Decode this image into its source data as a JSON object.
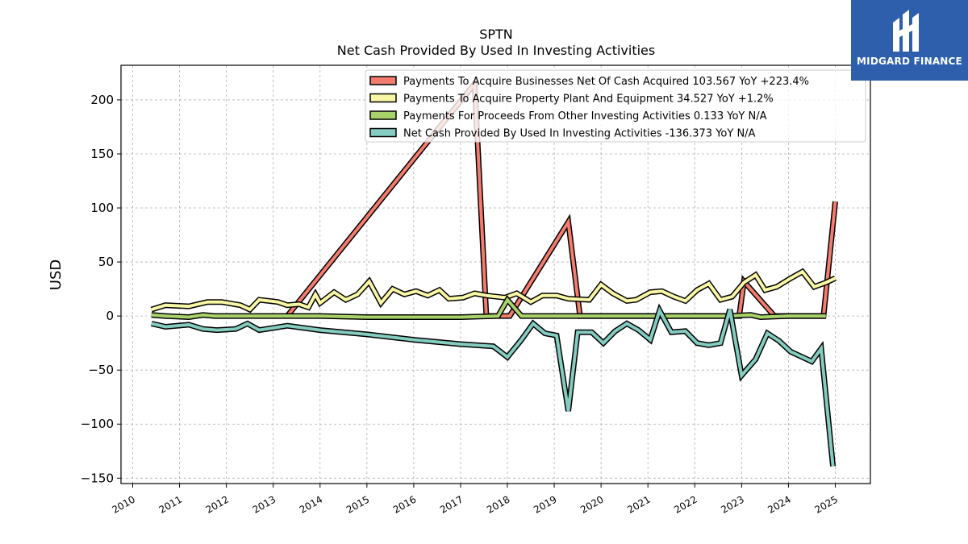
{
  "brand": {
    "name": "MIDGARD FINANCE",
    "bg_color": "#2d5fad"
  },
  "chart_data": {
    "type": "line",
    "title": "SPTN",
    "subtitle": "Net Cash Provided By Used In Investing Activities",
    "ylabel": "USD",
    "xlabel": "",
    "xlim": [
      2009.75,
      2025.75
    ],
    "ylim": [
      -155,
      232
    ],
    "yticks": [
      -150,
      -100,
      -50,
      0,
      50,
      100,
      150,
      200
    ],
    "xticks": [
      "2010",
      "2011",
      "2012",
      "2013",
      "2014",
      "2015",
      "2016",
      "2017",
      "2018",
      "2019",
      "2020",
      "2021",
      "2022",
      "2023",
      "2024",
      "2025"
    ],
    "grid": true,
    "legend_position": "top-right",
    "series": [
      {
        "name": "Payments To Acquire Businesses Net Of Cash Acquired",
        "legend_label": "Payments To Acquire Businesses Net Of Cash Acquired  103.567 YoY +223.4%",
        "color": "#f47c6e",
        "points": [
          [
            2013.3,
            0
          ],
          [
            2017.3,
            215
          ],
          [
            2017.55,
            0
          ],
          [
            2017.95,
            0
          ],
          [
            2018.05,
            0
          ],
          [
            2019.3,
            87
          ],
          [
            2019.55,
            0
          ],
          [
            2022.95,
            0
          ],
          [
            2023.05,
            32
          ],
          [
            2023.7,
            0
          ],
          [
            2024.75,
            0
          ],
          [
            2025.0,
            106
          ]
        ]
      },
      {
        "name": "Payments To Acquire Property Plant And Equipment",
        "legend_label": "Payments To Acquire Property Plant And Equipment  34.527 YoY +1.2%",
        "color": "#f8f7a6",
        "points": [
          [
            2010.4,
            6
          ],
          [
            2010.7,
            10
          ],
          [
            2011.2,
            9
          ],
          [
            2011.6,
            13
          ],
          [
            2011.9,
            13
          ],
          [
            2012.3,
            10
          ],
          [
            2012.5,
            6
          ],
          [
            2012.7,
            15
          ],
          [
            2013.1,
            13
          ],
          [
            2013.3,
            10
          ],
          [
            2013.55,
            11
          ],
          [
            2013.75,
            8
          ],
          [
            2013.9,
            20
          ],
          [
            2014.0,
            12
          ],
          [
            2014.3,
            22
          ],
          [
            2014.55,
            15
          ],
          [
            2014.8,
            20
          ],
          [
            2015.05,
            32
          ],
          [
            2015.3,
            12
          ],
          [
            2015.55,
            25
          ],
          [
            2015.8,
            20
          ],
          [
            2016.05,
            23
          ],
          [
            2016.3,
            19
          ],
          [
            2016.55,
            24
          ],
          [
            2016.75,
            16
          ],
          [
            2017.05,
            17
          ],
          [
            2017.3,
            21
          ],
          [
            2017.55,
            19
          ],
          [
            2017.95,
            17
          ],
          [
            2018.2,
            21
          ],
          [
            2018.5,
            13
          ],
          [
            2018.75,
            19
          ],
          [
            2019.05,
            19
          ],
          [
            2019.3,
            16
          ],
          [
            2019.75,
            15
          ],
          [
            2020.0,
            29
          ],
          [
            2020.25,
            21
          ],
          [
            2020.55,
            14
          ],
          [
            2020.75,
            15
          ],
          [
            2021.05,
            22
          ],
          [
            2021.3,
            23
          ],
          [
            2021.55,
            18
          ],
          [
            2021.8,
            14
          ],
          [
            2022.05,
            24
          ],
          [
            2022.3,
            30
          ],
          [
            2022.55,
            15
          ],
          [
            2022.8,
            18
          ],
          [
            2023.05,
            31
          ],
          [
            2023.3,
            38
          ],
          [
            2023.5,
            24
          ],
          [
            2023.75,
            27
          ],
          [
            2024.05,
            35
          ],
          [
            2024.3,
            41
          ],
          [
            2024.55,
            27
          ],
          [
            2024.8,
            31
          ],
          [
            2025.0,
            35
          ]
        ]
      },
      {
        "name": "Payments For Proceeds From Other Investing Activities",
        "legend_label": "Payments For Proceeds From Other Investing Activities  0.133 YoY N/A",
        "color": "#a8d36a",
        "points": [
          [
            2010.4,
            1
          ],
          [
            2010.7,
            0
          ],
          [
            2011.2,
            -1
          ],
          [
            2011.5,
            1
          ],
          [
            2011.75,
            0
          ],
          [
            2012.3,
            0
          ],
          [
            2013.0,
            0
          ],
          [
            2013.3,
            0
          ],
          [
            2014.0,
            0
          ],
          [
            2015.0,
            -1
          ],
          [
            2016.0,
            -1
          ],
          [
            2017.0,
            -1
          ],
          [
            2017.8,
            0
          ],
          [
            2018.0,
            15
          ],
          [
            2018.3,
            0
          ],
          [
            2018.7,
            0
          ],
          [
            2019.3,
            0
          ],
          [
            2020.0,
            0
          ],
          [
            2021.0,
            0
          ],
          [
            2022.0,
            0
          ],
          [
            2022.7,
            0
          ],
          [
            2023.2,
            1
          ],
          [
            2023.4,
            -1
          ],
          [
            2024.0,
            0
          ],
          [
            2024.8,
            0
          ]
        ]
      },
      {
        "name": "Net Cash Provided By Used In Investing Activities",
        "legend_label": "Net Cash Provided By Used In Investing Activities  -136.373 YoY N/A",
        "color": "#84ccc0",
        "points": [
          [
            2010.4,
            -7
          ],
          [
            2010.7,
            -10
          ],
          [
            2011.2,
            -8
          ],
          [
            2011.5,
            -12
          ],
          [
            2011.8,
            -13
          ],
          [
            2012.2,
            -12
          ],
          [
            2012.45,
            -7
          ],
          [
            2012.7,
            -13
          ],
          [
            2013.0,
            -11
          ],
          [
            2013.3,
            -9
          ],
          [
            2014.0,
            -13
          ],
          [
            2015.0,
            -17
          ],
          [
            2016.0,
            -22
          ],
          [
            2017.0,
            -26
          ],
          [
            2017.7,
            -28
          ],
          [
            2018.0,
            -38
          ],
          [
            2018.3,
            -22
          ],
          [
            2018.55,
            -7
          ],
          [
            2018.8,
            -16
          ],
          [
            2019.05,
            -18
          ],
          [
            2019.3,
            -88
          ],
          [
            2019.5,
            -15
          ],
          [
            2019.8,
            -15
          ],
          [
            2020.05,
            -25
          ],
          [
            2020.3,
            -14
          ],
          [
            2020.55,
            -7
          ],
          [
            2020.8,
            -13
          ],
          [
            2021.05,
            -22
          ],
          [
            2021.25,
            5
          ],
          [
            2021.5,
            -15
          ],
          [
            2021.8,
            -14
          ],
          [
            2022.05,
            -25
          ],
          [
            2022.3,
            -27
          ],
          [
            2022.55,
            -25
          ],
          [
            2022.75,
            6
          ],
          [
            2023.0,
            -55
          ],
          [
            2023.3,
            -40
          ],
          [
            2023.55,
            -16
          ],
          [
            2023.8,
            -23
          ],
          [
            2024.05,
            -33
          ],
          [
            2024.5,
            -42
          ],
          [
            2024.7,
            -30
          ],
          [
            2024.95,
            -139
          ]
        ]
      }
    ]
  }
}
